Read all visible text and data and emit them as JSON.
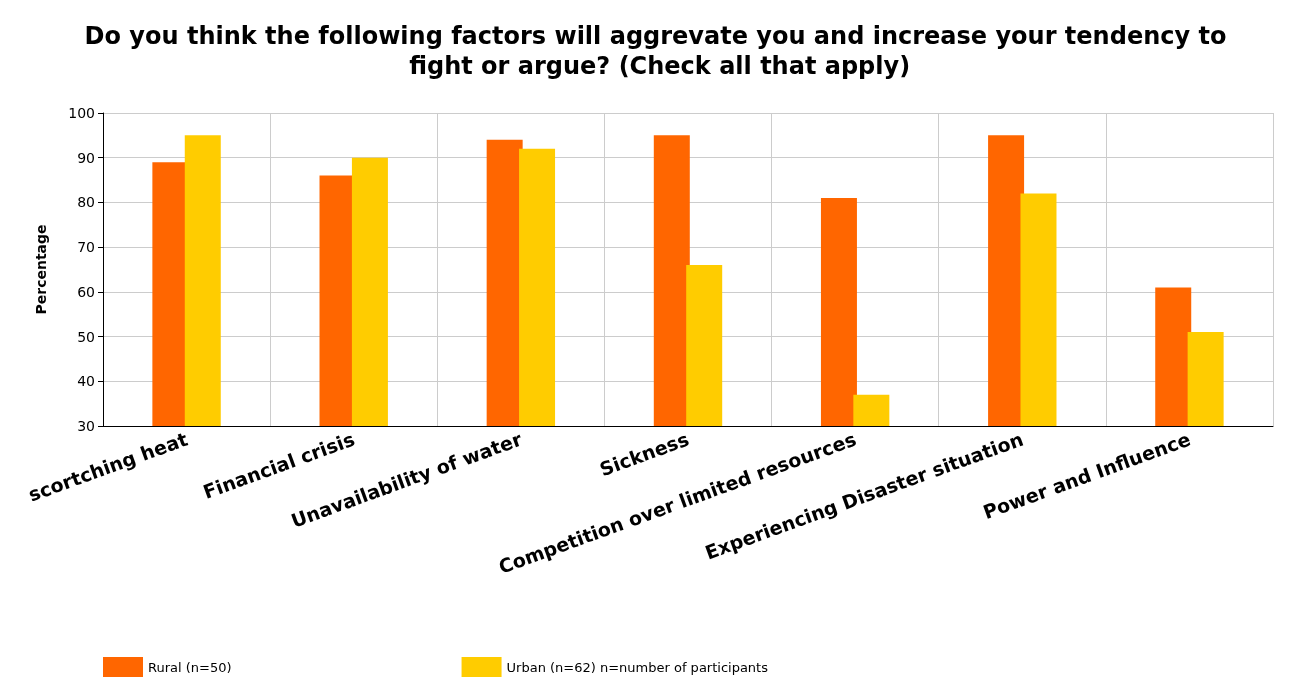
{
  "chart_data": {
    "type": "bar",
    "title": "Do you think the following factors will aggrevate you and increase your tendency to fight or argue? (Check all that apply)",
    "ylabel": "Percentage",
    "categories": [
      "scortching heat",
      "Financial crisis",
      "Unavailability of water",
      "Sickness",
      "Competition over limited resources",
      "Experiencing Disaster situation",
      "Power and Influence"
    ],
    "series": [
      {
        "name": "Rural (n=50)",
        "color": "#ff6600",
        "values": [
          89,
          86,
          94,
          95,
          81,
          95,
          61
        ]
      },
      {
        "name": "Urban (n=62) n=number of participants",
        "color": "#ffcc00",
        "values": [
          95,
          90,
          92,
          66,
          37,
          82,
          51
        ]
      }
    ],
    "ylim": [
      30,
      100
    ],
    "yticks": [
      30,
      40,
      50,
      60,
      70,
      80,
      90,
      100
    ],
    "grid": true,
    "legend": "bottom left"
  }
}
